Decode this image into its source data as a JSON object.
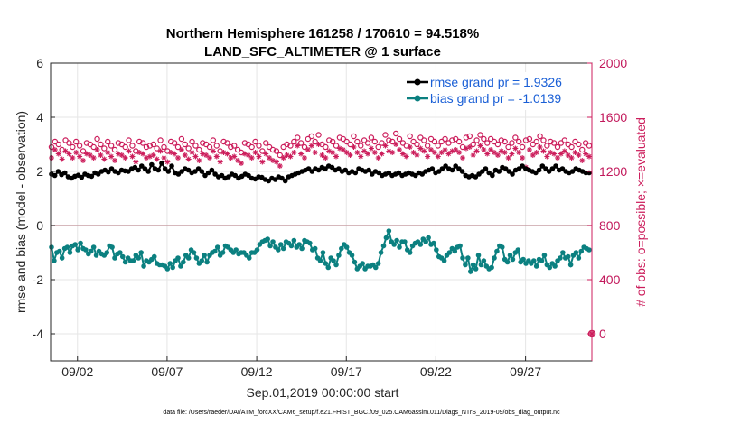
{
  "chart_data": {
    "type": "line",
    "title": [
      "Northern Hemisphere 161258 / 170610 = 94.518%",
      "LAND_SFC_ALTIMETER @ 1 surface"
    ],
    "xlabel": "Sep.01,2019 00:00:00 start",
    "ylabel_left": "rmse and bias (model - observation)",
    "ylabel_right": "# of obs: o=possible; ×=evaluated",
    "footnote": "data file: /Users/raeder/DAI/ATM_forcXX/CAM6_setup/f.e21.FHIST_BGC.f09_025.CAM6assim.011/Diags_NTrS_2019-09/obs_diag_output.nc",
    "x_range": [
      0.5,
      30.7
    ],
    "x_ticks": [
      {
        "value": 2,
        "label": "09/02"
      },
      {
        "value": 7,
        "label": "09/07"
      },
      {
        "value": 12,
        "label": "09/12"
      },
      {
        "value": 17,
        "label": "09/17"
      },
      {
        "value": 22,
        "label": "09/22"
      },
      {
        "value": 27,
        "label": "09/27"
      }
    ],
    "ylim_left": [
      -5,
      6
    ],
    "y_ticks_left": [
      {
        "value": 6,
        "label": "6"
      },
      {
        "value": 4,
        "label": "4"
      },
      {
        "value": 2,
        "label": "2"
      },
      {
        "value": 0,
        "label": "0"
      },
      {
        "value": -2,
        "label": "-2"
      },
      {
        "value": -4,
        "label": "-4"
      }
    ],
    "ylim_right": [
      -200,
      2000
    ],
    "y_ticks_right": [
      {
        "value": 2000,
        "label": "2000"
      },
      {
        "value": 1600,
        "label": "1600"
      },
      {
        "value": 1200,
        "label": "1200"
      },
      {
        "value": 800,
        "label": "800"
      },
      {
        "value": 400,
        "label": "400"
      },
      {
        "value": 0,
        "label": "0"
      }
    ],
    "legend": [
      {
        "name": "rmse grand pr = 1.9326",
        "color": "#000000"
      },
      {
        "name": "bias grand pr = -1.0139",
        "color": "#0b8080"
      }
    ],
    "colors": {
      "rmse": "#000000",
      "bias": "#0b8080",
      "obs": "#cc1e5c",
      "zero_line": "#c8a0a6",
      "grid": "#e6e6e6",
      "legend_text": "#1a5fd6"
    },
    "series": [
      {
        "name": "rmse",
        "values": [
          1.9,
          1.85,
          2.0,
          1.88,
          1.95,
          1.8,
          1.75,
          1.82,
          1.86,
          1.78,
          1.9,
          1.85,
          1.82,
          1.95,
          1.9,
          2.0,
          2.05,
          1.98,
          2.1,
          2.0,
          1.95,
          2.05,
          2.02,
          2.0,
          2.1,
          2.15,
          2.05,
          2.2,
          2.1,
          2.0,
          2.25,
          2.1,
          2.05,
          2.3,
          2.1,
          2.0,
          2.2,
          1.95,
          1.9,
          2.0,
          2.1,
          2.05,
          1.95,
          2.0,
          2.1,
          2.0,
          1.85,
          1.95,
          2.05,
          1.9,
          1.8,
          1.85,
          1.75,
          1.8,
          1.9,
          1.85,
          1.75,
          1.82,
          1.9,
          1.85,
          1.75,
          1.72,
          1.8,
          1.78,
          1.7,
          1.65,
          1.75,
          1.7,
          1.8,
          1.75,
          1.65,
          1.8,
          1.85,
          1.9,
          1.95,
          2.0,
          2.05,
          2.1,
          2.0,
          2.1,
          2.05,
          2.15,
          2.1,
          2.2,
          2.15,
          2.05,
          2.1,
          2.0,
          2.05,
          1.95,
          2.0,
          1.95,
          2.1,
          2.05,
          2.0,
          2.05,
          1.9,
          2.0,
          1.95,
          1.85,
          1.9,
          1.95,
          1.85,
          1.9,
          1.95,
          1.85,
          1.9,
          1.95,
          1.9,
          1.85,
          1.95,
          1.9,
          2.0,
          2.05,
          2.1,
          1.95,
          2.0,
          2.1,
          2.2,
          2.1,
          2.05,
          2.2,
          2.1,
          2.0,
          1.85,
          1.8,
          1.85,
          1.8,
          1.9,
          2.0,
          2.1,
          1.95,
          1.85,
          2.05,
          2.0,
          2.15,
          2.1,
          2.0,
          1.9,
          2.05,
          2.1,
          2.2,
          2.1,
          2.05,
          2.0,
          1.95,
          2.05,
          2.2,
          2.1,
          2.0,
          2.1,
          2.2,
          2.05,
          2.1,
          2.0,
          1.95,
          2.0,
          2.1,
          2.05,
          2.0,
          1.95,
          1.95
        ]
      },
      {
        "name": "bias",
        "values": [
          -0.8,
          -1.3,
          -1.0,
          -0.95,
          -1.2,
          -0.85,
          -0.8,
          -1.0,
          -0.75,
          -0.7,
          -0.9,
          -0.65,
          -0.85,
          -0.9,
          -1.05,
          -0.95,
          -0.8,
          -1.1,
          -0.95,
          -1.05,
          -1.1,
          -1.0,
          -0.75,
          -0.8,
          -1.2,
          -1.05,
          -1.0,
          -1.15,
          -1.35,
          -1.2,
          -1.3,
          -1.3,
          -1.1,
          -1.2,
          -1.0,
          -1.5,
          -1.3,
          -1.35,
          -1.25,
          -1.15,
          -1.4,
          -1.45,
          -1.45,
          -1.5,
          -1.6,
          -1.4,
          -1.55,
          -1.3,
          -1.2,
          -1.5,
          -1.35,
          -1.1,
          -1.2,
          -0.9,
          -1.0,
          -1.2,
          -1.4,
          -1.3,
          -1.1,
          -1.35,
          -1.1,
          -1.0,
          -0.95,
          -0.8,
          -1.1,
          -1.0,
          -0.75,
          -0.8,
          -0.9,
          -1.0,
          -0.9,
          -1.05,
          -1.0,
          -1.0,
          -1.1,
          -1.2,
          -1.0,
          -1.0,
          -0.9,
          -0.7,
          -0.6,
          -0.55,
          -0.5,
          -0.75,
          -0.6,
          -0.8,
          -0.9,
          -0.7,
          -0.85,
          -0.6,
          -0.65,
          -0.75,
          -0.55,
          -0.8,
          -0.7,
          -0.85,
          -0.55,
          -0.6,
          -0.65,
          -0.9,
          -0.85,
          -1.2,
          -1.3,
          -1.0,
          -1.4,
          -1.55,
          -1.2,
          -1.3,
          -1.45,
          -1.1,
          -0.85,
          -0.7,
          -0.8,
          -1.0,
          -1.1,
          -1.35,
          -1.6,
          -1.5,
          -1.4,
          -1.6,
          -1.5,
          -1.5,
          -1.45,
          -1.55,
          -1.4,
          -1.0,
          -0.75,
          -0.45,
          -0.2,
          -0.6,
          -0.7,
          -0.55,
          -0.8,
          -0.6,
          -0.6,
          -0.9,
          -1.0,
          -0.75,
          -0.65,
          -0.6,
          -0.7,
          -0.5,
          -0.6,
          -0.45,
          -0.7,
          -0.65,
          -0.9,
          -1.15,
          -1.2,
          -1.3,
          -1.1,
          -1.0,
          -0.85,
          -0.95,
          -0.8,
          -0.75,
          -1.2,
          -1.45,
          -1.2,
          -1.7,
          -1.45,
          -1.6,
          -1.1,
          -1.45,
          -1.3,
          -1.5,
          -1.6,
          -1.55,
          -1.2,
          -0.95,
          -0.75,
          -0.8,
          -1.25,
          -1.35,
          -1.1,
          -1.25,
          -1.0,
          -0.9,
          -1.35,
          -1.25,
          -1.4,
          -1.3,
          -1.4,
          -1.3,
          -1.5,
          -1.25,
          -1.3,
          -1.1,
          -1.45,
          -1.55,
          -1.4,
          -1.5,
          -1.3,
          -1.2,
          -1.0,
          -1.2,
          -1.15,
          -1.45,
          -1.1,
          -1.0,
          -1.2,
          -0.95,
          -0.8,
          -0.85,
          -0.9
        ]
      },
      {
        "name": "obs_possible",
        "values": [
          1380,
          1420,
          1400,
          1360,
          1430,
          1410,
          1380,
          1420,
          1390,
          1350,
          1410,
          1400,
          1380,
          1440,
          1400,
          1370,
          1420,
          1390,
          1360,
          1410,
          1400,
          1380,
          1430,
          1390,
          1350,
          1420,
          1410,
          1380,
          1390,
          1400,
          1370,
          1430,
          1380,
          1350,
          1420,
          1410,
          1380,
          1440,
          1400,
          1370,
          1420,
          1390,
          1360,
          1410,
          1400,
          1380,
          1430,
          1390,
          1350,
          1420,
          1410,
          1380,
          1390,
          1360,
          1340,
          1410,
          1400,
          1380,
          1420,
          1390,
          1350,
          1410,
          1380,
          1360,
          1350,
          1320,
          1380,
          1400,
          1390,
          1420,
          1450,
          1410,
          1380,
          1440,
          1460,
          1420,
          1470,
          1400,
          1380,
          1430,
          1420,
          1390,
          1450,
          1440,
          1420,
          1400,
          1460,
          1420,
          1390,
          1430,
          1410,
          1450,
          1420,
          1380,
          1410,
          1470,
          1430,
          1420,
          1480,
          1440,
          1410,
          1390,
          1460,
          1420,
          1400,
          1450,
          1430,
          1390,
          1440,
          1420,
          1390,
          1420,
          1440,
          1410,
          1430,
          1440,
          1420,
          1380,
          1450,
          1460,
          1400,
          1430,
          1470,
          1440,
          1410,
          1440,
          1420,
          1400,
          1430,
          1420,
          1380,
          1410,
          1450,
          1420,
          1380,
          1430,
          1440,
          1400,
          1420,
          1460,
          1430,
          1390,
          1420,
          1410,
          1380,
          1410,
          1430,
          1400,
          1380,
          1420,
          1400,
          1360,
          1410,
          1390
        ]
      },
      {
        "name": "obs_evaluated",
        "values": [
          1300,
          1360,
          1330,
          1290,
          1350,
          1330,
          1300,
          1340,
          1310,
          1280,
          1330,
          1320,
          1300,
          1360,
          1320,
          1290,
          1340,
          1310,
          1280,
          1330,
          1320,
          1300,
          1350,
          1310,
          1270,
          1340,
          1330,
          1300,
          1310,
          1320,
          1290,
          1350,
          1300,
          1270,
          1340,
          1330,
          1300,
          1360,
          1320,
          1290,
          1340,
          1310,
          1280,
          1330,
          1320,
          1300,
          1350,
          1310,
          1270,
          1340,
          1330,
          1300,
          1310,
          1280,
          1260,
          1330,
          1320,
          1300,
          1340,
          1310,
          1270,
          1330,
          1300,
          1280,
          1270,
          1240,
          1300,
          1320,
          1310,
          1340,
          1390,
          1330,
          1300,
          1360,
          1390,
          1340,
          1400,
          1320,
          1300,
          1350,
          1340,
          1310,
          1370,
          1360,
          1340,
          1320,
          1380,
          1340,
          1310,
          1350,
          1330,
          1370,
          1340,
          1300,
          1330,
          1390,
          1350,
          1340,
          1400,
          1360,
          1330,
          1310,
          1380,
          1340,
          1320,
          1370,
          1350,
          1310,
          1360,
          1340,
          1310,
          1340,
          1360,
          1330,
          1350,
          1360,
          1340,
          1300,
          1370,
          1380,
          1320,
          1350,
          1390,
          1360,
          1330,
          1360,
          1340,
          1320,
          1350,
          1340,
          1300,
          1330,
          1370,
          1340,
          1300,
          1230,
          1360,
          1320,
          1340,
          1380,
          1350,
          1310,
          1340,
          1330,
          1300,
          1330,
          1350,
          1320,
          1300,
          1340,
          1320,
          1280,
          1330,
          1310
        ]
      }
    ],
    "obs_outlier": {
      "x": 30.7,
      "y_right": 0
    }
  }
}
